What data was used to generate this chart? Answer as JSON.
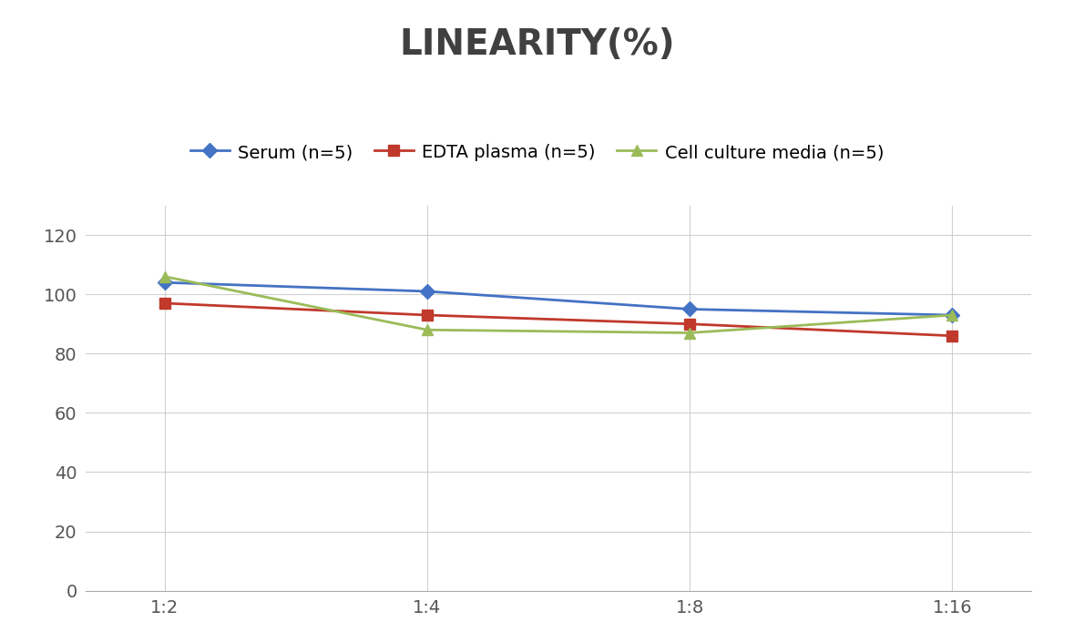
{
  "title": "LINEARITY(%)",
  "title_fontsize": 28,
  "title_fontweight": "bold",
  "title_color": "#404040",
  "x_labels": [
    "1:2",
    "1:4",
    "1:8",
    "1:16"
  ],
  "x_positions": [
    0,
    1,
    2,
    3
  ],
  "series": [
    {
      "label": "Serum (n=5)",
      "values": [
        104,
        101,
        95,
        93
      ],
      "color": "#4472C4",
      "marker": "D",
      "markersize": 8,
      "linewidth": 2
    },
    {
      "label": "EDTA plasma (n=5)",
      "values": [
        97,
        93,
        90,
        86
      ],
      "color": "#C0392B",
      "marker": "s",
      "markersize": 8,
      "linewidth": 2
    },
    {
      "label": "Cell culture media (n=5)",
      "values": [
        106,
        88,
        87,
        93
      ],
      "color": "#9BBB59",
      "marker": "^",
      "markersize": 8,
      "linewidth": 2
    }
  ],
  "ylim": [
    0,
    130
  ],
  "yticks": [
    0,
    20,
    40,
    60,
    80,
    100,
    120
  ],
  "background_color": "#ffffff",
  "grid_color": "#d0d0d0",
  "legend_fontsize": 14,
  "tick_fontsize": 14,
  "tick_color": "#555555"
}
